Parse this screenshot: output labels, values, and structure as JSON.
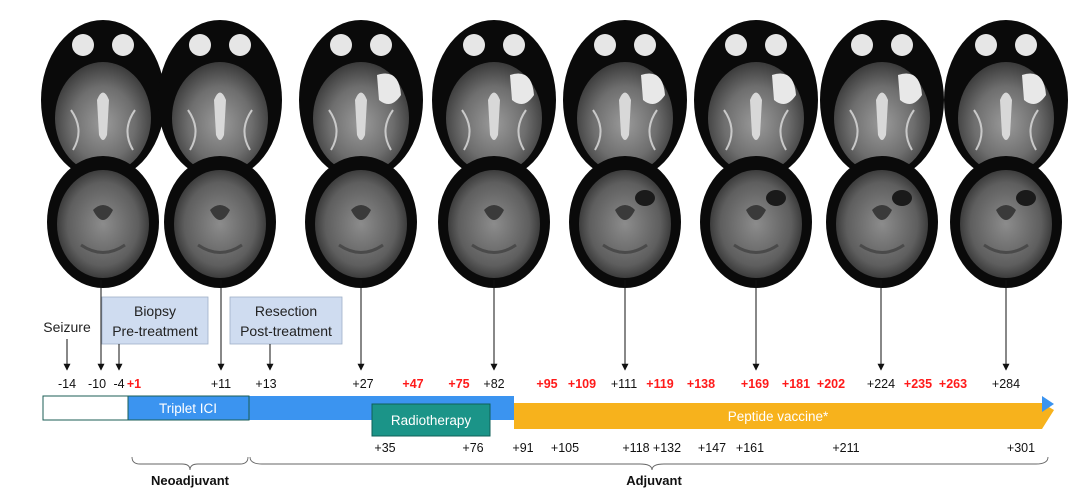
{
  "events": {
    "seizure": "Seizure",
    "biopsy_line1": "Biopsy",
    "biopsy_line2": "Pre-treatment",
    "resection_line1": "Resection",
    "resection_line2": "Post-treatment"
  },
  "timepoints_top": [
    {
      "label": "-14",
      "highlight": false
    },
    {
      "label": "-10",
      "highlight": false
    },
    {
      "label": "-4",
      "highlight": false
    },
    {
      "label": "+1",
      "highlight": true
    },
    {
      "label": "+11",
      "highlight": false
    },
    {
      "label": "+13",
      "highlight": false
    },
    {
      "label": "+27",
      "highlight": false
    },
    {
      "label": "+47",
      "highlight": true
    },
    {
      "label": "+75",
      "highlight": true
    },
    {
      "label": "+82",
      "highlight": false
    },
    {
      "label": "+95",
      "highlight": true
    },
    {
      "label": "+109",
      "highlight": true
    },
    {
      "label": "+111",
      "highlight": false
    },
    {
      "label": "+119",
      "highlight": true
    },
    {
      "label": "+138",
      "highlight": true
    },
    {
      "label": "+169",
      "highlight": true
    },
    {
      "label": "+181",
      "highlight": true
    },
    {
      "label": "+202",
      "highlight": true
    },
    {
      "label": "+224",
      "highlight": false
    },
    {
      "label": "+235",
      "highlight": true
    },
    {
      "label": "+263",
      "highlight": true
    },
    {
      "label": "+284",
      "highlight": false
    }
  ],
  "timepoints_bottom": [
    "+35",
    "+76",
    "+91",
    "+105",
    "+118",
    "+132",
    "+147",
    "+161",
    "+211",
    "+301"
  ],
  "therapies": {
    "triplet": "Triplet ICI",
    "radiotherapy": "Radiotherapy",
    "vaccine": "Peptide vaccine*"
  },
  "phases": {
    "neoadjuvant": "Neoadjuvant",
    "adjuvant": "Adjuvant"
  },
  "scans": [
    {
      "day": "-10",
      "label": "scan-day-minus-10"
    },
    {
      "day": "+11",
      "label": "scan-day-11"
    },
    {
      "day": "+27",
      "label": "scan-day-27"
    },
    {
      "day": "+82",
      "label": "scan-day-82"
    },
    {
      "day": "+111",
      "label": "scan-day-111"
    },
    {
      "day": "+169",
      "label": "scan-day-169"
    },
    {
      "day": "+224",
      "label": "scan-day-224"
    },
    {
      "day": "+284",
      "label": "scan-day-284"
    }
  ],
  "colors": {
    "highlight": "#ff1a1a",
    "triplet_bar": "#3b94f0",
    "radiotherapy_bar": "#1b9488",
    "vaccine_bar": "#f7b21c",
    "event_box": "#cfdcf0"
  }
}
